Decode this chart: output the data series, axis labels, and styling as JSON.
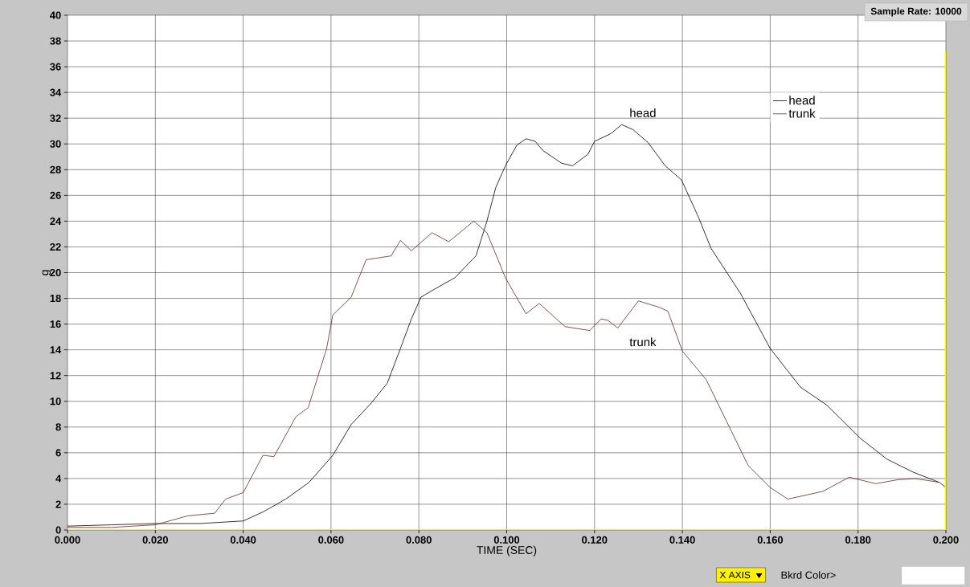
{
  "chart_data": {
    "type": "line",
    "xlabel": "TIME (SEC)",
    "ylabel": "g",
    "xlim": [
      0,
      0.2
    ],
    "ylim": [
      0,
      40
    ],
    "xticks": [
      {
        "value": 0,
        "label": "0.000"
      },
      {
        "value": 0.02,
        "label": "0.020"
      },
      {
        "value": 0.04,
        "label": "0.040"
      },
      {
        "value": 0.06,
        "label": "0.060"
      },
      {
        "value": 0.08,
        "label": "0.080"
      },
      {
        "value": 0.1,
        "label": "0.100"
      },
      {
        "value": 0.12,
        "label": "0.120"
      },
      {
        "value": 0.14,
        "label": "0.140"
      },
      {
        "value": 0.16,
        "label": "0.160"
      },
      {
        "value": 0.18,
        "label": "0.180"
      },
      {
        "value": 0.2,
        "label": "0.200"
      }
    ],
    "yticks": [
      0,
      2,
      4,
      6,
      8,
      10,
      12,
      14,
      16,
      18,
      20,
      22,
      24,
      26,
      28,
      30,
      32,
      34,
      36,
      38,
      40
    ],
    "grid": true,
    "legend": "top right",
    "marker": "none",
    "line_style": "solid",
    "series": [
      {
        "name": "head",
        "color": "#000000",
        "x": [
          0,
          0.01,
          0.02,
          0.03,
          0.04,
          0.0445,
          0.0497,
          0.055,
          0.0604,
          0.0646,
          0.069,
          0.0728,
          0.0758,
          0.0783,
          0.0805,
          0.0835,
          0.0882,
          0.093,
          0.0955,
          0.0975,
          0.0997,
          0.1023,
          0.1044,
          0.1065,
          0.1082,
          0.1125,
          0.115,
          0.1185,
          0.12,
          0.1237,
          0.1262,
          0.1288,
          0.1322,
          0.1361,
          0.1398,
          0.1438,
          0.1465,
          0.1532,
          0.16,
          0.1669,
          0.1729,
          0.1806,
          0.1866,
          0.1925,
          0.1985,
          0.2
        ],
        "values": [
          0.3,
          0.4,
          0.5,
          0.5,
          0.7,
          1.4,
          2.4,
          3.7,
          5.8,
          8.2,
          9.8,
          11.4,
          14.1,
          16.4,
          18.1,
          18.7,
          19.6,
          21.3,
          24,
          26.6,
          28.3,
          29.9,
          30.4,
          30.2,
          29.5,
          28.5,
          28.3,
          29.2,
          30.2,
          30.8,
          31.5,
          31.1,
          30.1,
          28.3,
          27.2,
          24.2,
          21.9,
          18.4,
          14.1,
          11.1,
          9.7,
          7.1,
          5.5,
          4.5,
          3.7,
          3.3
        ]
      },
      {
        "name": "trunk",
        "color": "#5e2a2a",
        "x": [
          0,
          0.01,
          0.02,
          0.0274,
          0.0335,
          0.036,
          0.04,
          0.0445,
          0.047,
          0.052,
          0.0548,
          0.059,
          0.0604,
          0.0646,
          0.068,
          0.0737,
          0.0758,
          0.0783,
          0.083,
          0.0868,
          0.0925,
          0.0955,
          0.0997,
          0.1044,
          0.1074,
          0.1133,
          0.1189,
          0.1215,
          0.123,
          0.1253,
          0.13,
          0.1348,
          0.1367,
          0.14,
          0.1454,
          0.155,
          0.16,
          0.164,
          0.172,
          0.178,
          0.184,
          0.189,
          0.193,
          0.1985
        ],
        "values": [
          0.2,
          0.2,
          0.4,
          1.1,
          1.3,
          2.4,
          2.9,
          5.8,
          5.7,
          8.8,
          9.5,
          14.1,
          16.7,
          18.1,
          21,
          21.3,
          22.5,
          21.7,
          23.1,
          22.4,
          24,
          23.1,
          19.6,
          16.8,
          17.6,
          15.8,
          15.5,
          16.4,
          16.3,
          15.7,
          17.8,
          17.3,
          17,
          13.9,
          11.7,
          5,
          3.3,
          2.4,
          3,
          4.1,
          3.6,
          3.9,
          4,
          3.7
        ]
      }
    ],
    "annotations": [
      "head",
      "trunk",
      "Sample Rate: 10000",
      "X AXIS",
      "Bkrd Color>"
    ]
  }
}
